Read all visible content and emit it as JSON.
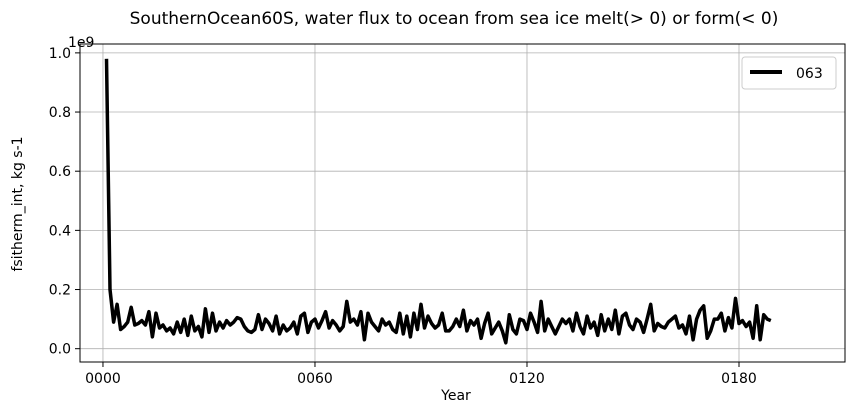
{
  "chart_data": {
    "type": "line",
    "title": "SouthernOcean60S, water flux to ocean from sea ice melt(> 0) or form(< 0)",
    "xlabel": "Year",
    "ylabel": "fsitherm_int, kg s-1",
    "y_offset_label": "1e9",
    "y_scale": 1000000000,
    "xlim": [
      -6.5,
      210
    ],
    "ylim": [
      -0.045,
      1.03
    ],
    "x_ticks": [
      {
        "value": 0,
        "label": "0000"
      },
      {
        "value": 60,
        "label": "0060"
      },
      {
        "value": 120,
        "label": "0120"
      },
      {
        "value": 180,
        "label": "0180"
      }
    ],
    "y_ticks": [
      {
        "value": 0.0,
        "label": "0.0"
      },
      {
        "value": 0.2,
        "label": "0.2"
      },
      {
        "value": 0.4,
        "label": "0.4"
      },
      {
        "value": 0.6,
        "label": "0.6"
      },
      {
        "value": 0.8,
        "label": "0.8"
      },
      {
        "value": 1.0,
        "label": "1.0"
      }
    ],
    "grid": true,
    "legend_position": "top-right",
    "series": [
      {
        "name": "063",
        "color": "#000000",
        "x_start": 1,
        "x_step": 1,
        "values": [
          0.98,
          0.2,
          0.09,
          0.15,
          0.065,
          0.075,
          0.09,
          0.14,
          0.08,
          0.085,
          0.095,
          0.08,
          0.125,
          0.04,
          0.12,
          0.07,
          0.08,
          0.06,
          0.07,
          0.05,
          0.09,
          0.055,
          0.1,
          0.045,
          0.11,
          0.06,
          0.075,
          0.04,
          0.135,
          0.055,
          0.12,
          0.06,
          0.09,
          0.07,
          0.095,
          0.08,
          0.09,
          0.105,
          0.1,
          0.075,
          0.06,
          0.055,
          0.065,
          0.115,
          0.065,
          0.1,
          0.085,
          0.06,
          0.11,
          0.05,
          0.08,
          0.06,
          0.07,
          0.09,
          0.05,
          0.11,
          0.12,
          0.055,
          0.09,
          0.1,
          0.07,
          0.095,
          0.125,
          0.07,
          0.095,
          0.08,
          0.06,
          0.075,
          0.16,
          0.09,
          0.1,
          0.08,
          0.125,
          0.03,
          0.12,
          0.09,
          0.075,
          0.06,
          0.1,
          0.08,
          0.09,
          0.065,
          0.055,
          0.12,
          0.05,
          0.11,
          0.04,
          0.12,
          0.065,
          0.15,
          0.07,
          0.11,
          0.085,
          0.07,
          0.08,
          0.12,
          0.06,
          0.06,
          0.075,
          0.1,
          0.075,
          0.13,
          0.06,
          0.095,
          0.08,
          0.1,
          0.035,
          0.085,
          0.12,
          0.05,
          0.07,
          0.09,
          0.06,
          0.02,
          0.115,
          0.065,
          0.05,
          0.1,
          0.095,
          0.065,
          0.12,
          0.09,
          0.055,
          0.16,
          0.06,
          0.1,
          0.075,
          0.05,
          0.075,
          0.1,
          0.085,
          0.1,
          0.06,
          0.12,
          0.075,
          0.05,
          0.11,
          0.07,
          0.09,
          0.045,
          0.115,
          0.06,
          0.1,
          0.065,
          0.13,
          0.05,
          0.11,
          0.12,
          0.08,
          0.065,
          0.1,
          0.09,
          0.055,
          0.1,
          0.15,
          0.06,
          0.085,
          0.075,
          0.07,
          0.09,
          0.1,
          0.11,
          0.07,
          0.08,
          0.05,
          0.11,
          0.03,
          0.1,
          0.13,
          0.145,
          0.035,
          0.06,
          0.1,
          0.1,
          0.12,
          0.06,
          0.105,
          0.07,
          0.17,
          0.085,
          0.095,
          0.075,
          0.09,
          0.035,
          0.145,
          0.03,
          0.115,
          0.1,
          0.095
        ]
      }
    ]
  }
}
